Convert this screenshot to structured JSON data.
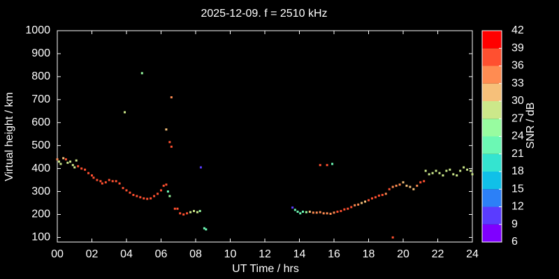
{
  "chart_data": {
    "type": "scatter",
    "title": "2025-12-09. f = 2510 kHz",
    "xlabel": "UT Time / hrs",
    "ylabel": "Virtual height / km",
    "xlim": [
      0,
      24
    ],
    "xticks": [
      {
        "value": 0,
        "label": "00"
      },
      {
        "value": 2,
        "label": "02"
      },
      {
        "value": 4,
        "label": "04"
      },
      {
        "value": 6,
        "label": "06"
      },
      {
        "value": 8,
        "label": "08"
      },
      10,
      12,
      14,
      16,
      18,
      20,
      22,
      24
    ],
    "ylim": [
      80,
      1000
    ],
    "yticks": [
      100,
      200,
      300,
      400,
      500,
      600,
      700,
      800,
      900,
      1000
    ],
    "x": [
      0.0,
      0.1,
      0.2,
      0.35,
      0.5,
      0.6,
      0.75,
      0.9,
      1.0,
      1.1,
      1.2,
      1.4,
      1.6,
      1.8,
      2.0,
      2.1,
      2.3,
      2.5,
      2.6,
      2.8,
      3.0,
      3.2,
      3.4,
      3.6,
      3.8,
      4.0,
      4.2,
      4.4,
      4.6,
      4.8,
      5.0,
      5.2,
      5.4,
      5.6,
      5.8,
      6.0,
      6.15,
      6.3,
      6.8,
      6.95,
      7.1,
      7.3,
      7.5,
      7.7,
      7.9,
      8.1,
      8.25,
      3.9,
      4.9,
      6.3,
      6.6,
      6.5,
      6.6,
      6.4,
      6.5,
      8.3,
      8.5,
      8.6,
      13.6,
      13.75,
      13.9,
      14.05,
      14.2,
      14.4,
      14.6,
      14.8,
      15.0,
      15.2,
      15.4,
      15.6,
      15.8,
      16.0,
      16.2,
      16.4,
      16.6,
      16.8,
      17.0,
      17.2,
      17.4,
      17.6,
      17.8,
      18.0,
      18.2,
      18.4,
      18.6,
      18.8,
      19.0,
      19.2,
      19.4,
      19.6,
      19.8,
      20.0,
      20.2,
      20.4,
      20.6,
      20.8,
      21.0,
      21.2,
      21.3,
      21.5,
      21.7,
      21.9,
      22.1,
      22.3,
      22.5,
      22.7,
      22.9,
      23.1,
      23.3,
      23.5,
      23.7,
      23.9,
      24.0,
      15.2,
      15.6,
      15.9,
      19.4
    ],
    "values": [
      440,
      430,
      420,
      445,
      440,
      425,
      430,
      415,
      405,
      435,
      410,
      400,
      395,
      380,
      370,
      360,
      350,
      345,
      335,
      340,
      350,
      345,
      345,
      335,
      315,
      305,
      295,
      285,
      280,
      275,
      270,
      268,
      270,
      280,
      290,
      305,
      325,
      330,
      225,
      225,
      205,
      200,
      205,
      210,
      215,
      210,
      215,
      645,
      815,
      570,
      710,
      515,
      495,
      300,
      280,
      405,
      140,
      135,
      230,
      220,
      212,
      205,
      212,
      210,
      212,
      208,
      208,
      210,
      205,
      205,
      203,
      208,
      212,
      215,
      222,
      225,
      232,
      240,
      243,
      250,
      256,
      262,
      270,
      275,
      282,
      285,
      290,
      310,
      320,
      325,
      330,
      340,
      325,
      320,
      310,
      325,
      340,
      345,
      390,
      375,
      380,
      390,
      380,
      370,
      390,
      395,
      375,
      370,
      390,
      405,
      395,
      390,
      375,
      415,
      415,
      420,
      100
    ],
    "snr": [
      33,
      27,
      27,
      30,
      36,
      27,
      27,
      27,
      27,
      27,
      36,
      36,
      36,
      36,
      36,
      36,
      37,
      36,
      37,
      37,
      37,
      37,
      37,
      37,
      37,
      37,
      37,
      37,
      37,
      37,
      37,
      37,
      36,
      36,
      36,
      37,
      37,
      37,
      36,
      36,
      36,
      36,
      36,
      27,
      27,
      27,
      24,
      28,
      24,
      30,
      33,
      36,
      36,
      21,
      24,
      10,
      21,
      21,
      10,
      21,
      21,
      21,
      21,
      24,
      30,
      33,
      33,
      33,
      33,
      33,
      33,
      33,
      36,
      36,
      38,
      38,
      37,
      33,
      33,
      30,
      30,
      36,
      36,
      36,
      36,
      36,
      33,
      36,
      33,
      33,
      33,
      30,
      30,
      30,
      30,
      33,
      36,
      36,
      27,
      27,
      27,
      27,
      27,
      27,
      27,
      27,
      27,
      27,
      27,
      27,
      27,
      27,
      27,
      36,
      37,
      22,
      36
    ],
    "colorbar": {
      "label": "SNR / dB",
      "clim": [
        6,
        42
      ],
      "ticks": [
        6,
        9,
        12,
        15,
        18,
        21,
        24,
        27,
        30,
        33,
        36,
        39,
        42
      ],
      "colors": [
        "#7f00ff",
        "#5a3cff",
        "#2c80f7",
        "#10c0e8",
        "#34e4d0",
        "#6cf8b4",
        "#98fca0",
        "#cce88a",
        "#f6c07a",
        "#ff8c52",
        "#ff5030",
        "#ff0000"
      ]
    }
  }
}
